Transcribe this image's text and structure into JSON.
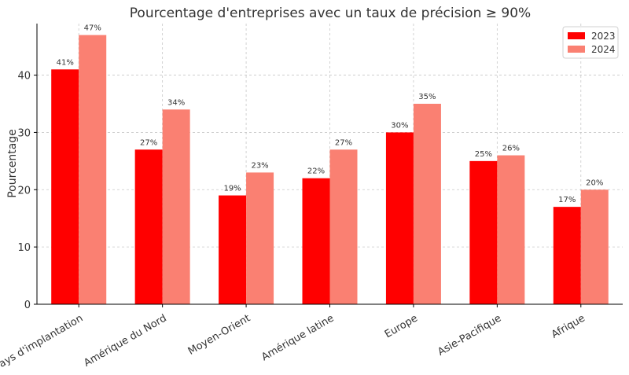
{
  "chart_data": {
    "type": "bar",
    "title": "Pourcentage d'entreprises avec un taux de précision ≥ 90%",
    "xlabel": "",
    "ylabel": "Pourcentage",
    "ylim": [
      0,
      49
    ],
    "yticks": [
      0,
      10,
      20,
      30,
      40
    ],
    "grid": true,
    "legend_position": "top-right",
    "categories": [
      "Pays d'implantation",
      "Amérique du Nord",
      "Moyen-Orient",
      "Amérique latine",
      "Europe",
      "Asie-Pacifique",
      "Afrique"
    ],
    "series": [
      {
        "name": "2023",
        "color": "#ff0000",
        "values": [
          41,
          27,
          19,
          22,
          30,
          25,
          17
        ],
        "labels": [
          "41%",
          "27%",
          "19%",
          "22%",
          "30%",
          "25%",
          "17%"
        ]
      },
      {
        "name": "2024",
        "color": "#fa8072",
        "values": [
          47,
          34,
          23,
          27,
          35,
          26,
          20
        ],
        "labels": [
          "47%",
          "34%",
          "23%",
          "27%",
          "35%",
          "26%",
          "20%"
        ]
      }
    ]
  }
}
